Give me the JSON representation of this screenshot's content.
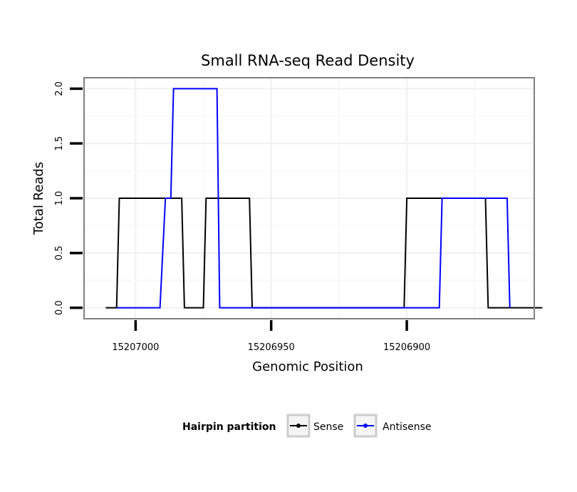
{
  "chart_data": {
    "type": "line",
    "title": "Small RNA-seq Read Density",
    "xlabel": "Genomic Position",
    "ylabel": "Total Reads",
    "x_reversed": true,
    "xlim": [
      15207019,
      15206853
    ],
    "ylim": [
      -0.1,
      2.1
    ],
    "x_ticks": [
      15207000,
      15206950,
      15206900
    ],
    "x_tick_labels": [
      "15207000",
      "15206950",
      "15206900"
    ],
    "y_ticks": [
      0.0,
      0.5,
      1.0,
      1.5,
      2.0
    ],
    "y_tick_labels": [
      "0.0",
      "0.5",
      "1.0",
      "1.5",
      "2.0"
    ],
    "grid": true,
    "legend": {
      "title": "Hairpin partition",
      "position": "bottom",
      "entries": [
        "Sense",
        "Antisense"
      ]
    },
    "series": [
      {
        "name": "Sense",
        "color": "#000000",
        "x": [
          15207011,
          15207007,
          15207006,
          15206983,
          15206982,
          15206979,
          15206975,
          15206974,
          15206958,
          15206957,
          15206901,
          15206900,
          15206888,
          15206887,
          15206871,
          15206870,
          15206850
        ],
        "y": [
          0,
          0,
          1,
          1,
          0,
          0,
          0,
          1,
          1,
          0,
          0,
          1,
          1,
          1,
          1,
          0,
          0
        ]
      },
      {
        "name": "Antisense",
        "color": "#0000ff",
        "x": [
          15207007,
          15206991,
          15206989,
          15206987,
          15206986,
          15206970,
          15206969,
          15206888,
          15206887,
          15206875,
          15206874,
          15206863,
          15206862
        ],
        "y": [
          0,
          0,
          1,
          1,
          2,
          2,
          0,
          0,
          1,
          1,
          1,
          1,
          0
        ]
      }
    ]
  }
}
